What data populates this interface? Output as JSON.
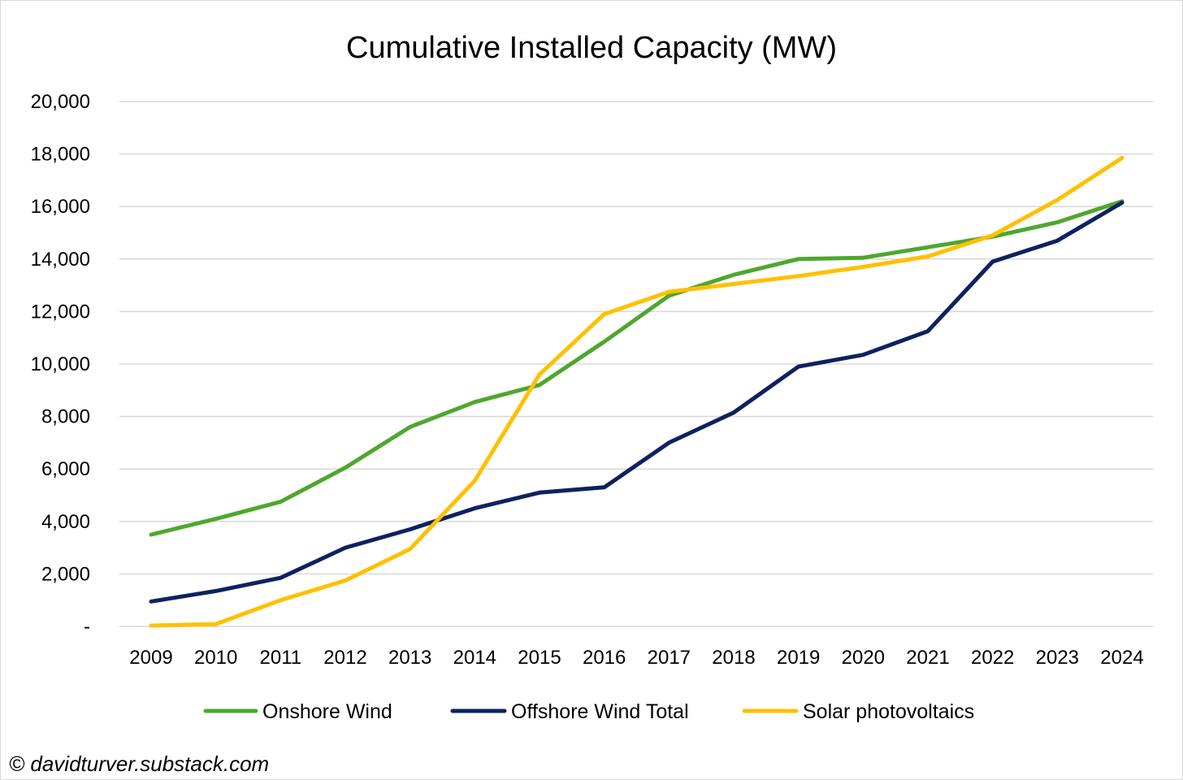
{
  "chart_data": {
    "type": "line",
    "title": "Cumulative Installed Capacity (MW)",
    "xlabel": "",
    "ylabel": "",
    "categories": [
      "2009",
      "2010",
      "2011",
      "2012",
      "2013",
      "2014",
      "2015",
      "2016",
      "2017",
      "2018",
      "2019",
      "2020",
      "2021",
      "2022",
      "2023",
      "2024"
    ],
    "ylim": [
      0,
      20000
    ],
    "yticks": [
      0,
      2000,
      4000,
      6000,
      8000,
      10000,
      12000,
      14000,
      16000,
      18000,
      20000
    ],
    "ytick_labels": [
      "-",
      "2,000",
      "4,000",
      "6,000",
      "8,000",
      "10,000",
      "12,000",
      "14,000",
      "16,000",
      "18,000",
      "20,000"
    ],
    "grid": true,
    "legend_position": "bottom",
    "series": [
      {
        "name": "Onshore Wind",
        "color": "#4ea72e",
        "values": [
          3500,
          4100,
          4750,
          6050,
          7600,
          8550,
          9200,
          10850,
          12600,
          13400,
          14000,
          14050,
          14450,
          14850,
          15400,
          16200
        ]
      },
      {
        "name": "Offshore Wind Total",
        "color": "#0e2160",
        "values": [
          950,
          1350,
          1850,
          3000,
          3700,
          4500,
          5100,
          5300,
          7000,
          8150,
          9900,
          10350,
          11250,
          13900,
          14700,
          16150
        ]
      },
      {
        "name": "Solar photovoltaics",
        "color": "#ffc000",
        "values": [
          30,
          90,
          1000,
          1750,
          2950,
          5550,
          9600,
          11900,
          12750,
          13050,
          13350,
          13700,
          14100,
          14900,
          16250,
          17850
        ]
      }
    ]
  },
  "credit": "© davidturver.substack.com"
}
